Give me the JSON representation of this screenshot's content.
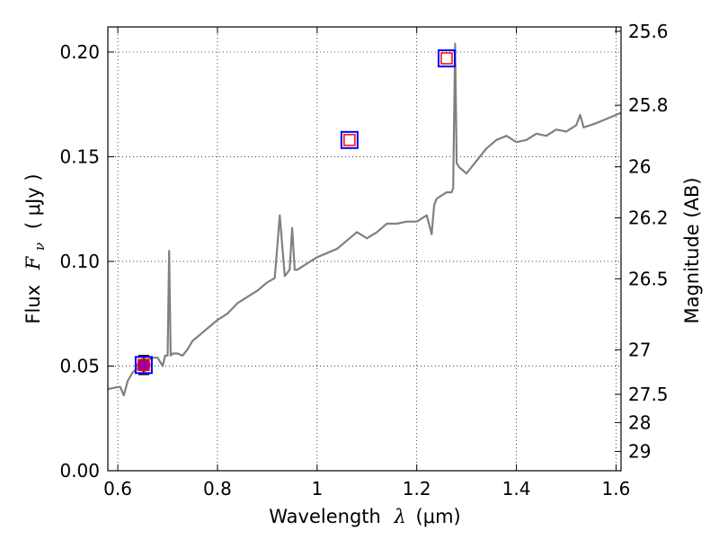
{
  "chart_data": {
    "type": "line",
    "xlabel_text": "Wavelength",
    "xlabel_symbol": "λ",
    "xlabel_unit": "(μm)",
    "ylabel_text": "Flux",
    "ylabel_symbol": "F",
    "ylabel_subscript": "ν",
    "ylabel_unit": "( μJy )",
    "y2label": "Magnitude (AB)",
    "xlim": [
      0.58,
      1.61
    ],
    "ylim": [
      0.0,
      0.212
    ],
    "x_ticks": [
      {
        "value": 0.6,
        "label": "0.6"
      },
      {
        "value": 0.8,
        "label": "0.8"
      },
      {
        "value": 1.0,
        "label": "1"
      },
      {
        "value": 1.2,
        "label": "1.2"
      },
      {
        "value": 1.4,
        "label": "1.4"
      },
      {
        "value": 1.6,
        "label": "1.6"
      }
    ],
    "y_ticks": [
      {
        "value": 0.0,
        "label": "0.00"
      },
      {
        "value": 0.05,
        "label": "0.05"
      },
      {
        "value": 0.1,
        "label": "0.10"
      },
      {
        "value": 0.15,
        "label": "0.15"
      },
      {
        "value": 0.2,
        "label": "0.20"
      }
    ],
    "y2_ticks": [
      {
        "label": "25.6",
        "flux": 0.2099
      },
      {
        "label": "25.8",
        "flux": 0.1746
      },
      {
        "label": "26",
        "flux": 0.1452
      },
      {
        "label": "26.2",
        "flux": 0.1208
      },
      {
        "label": "26.5",
        "flux": 0.0917
      },
      {
        "label": "27",
        "flux": 0.0578
      },
      {
        "label": "27.5",
        "flux": 0.0365
      },
      {
        "label": "28",
        "flux": 0.023
      },
      {
        "label": "29",
        "flux": 0.0092
      }
    ],
    "grid": true,
    "series": [
      {
        "role": "model-spectrum",
        "color": "#808080",
        "x": [
          0.58,
          0.6,
          0.605,
          0.612,
          0.62,
          0.63,
          0.64,
          0.65,
          0.66,
          0.67,
          0.68,
          0.69,
          0.695,
          0.7,
          0.703,
          0.706,
          0.71,
          0.72,
          0.73,
          0.74,
          0.75,
          0.76,
          0.77,
          0.78,
          0.79,
          0.8,
          0.82,
          0.84,
          0.86,
          0.88,
          0.9,
          0.915,
          0.925,
          0.935,
          0.945,
          0.95,
          0.955,
          0.96,
          0.98,
          1.0,
          1.02,
          1.04,
          1.06,
          1.08,
          1.1,
          1.12,
          1.14,
          1.16,
          1.18,
          1.2,
          1.22,
          1.23,
          1.235,
          1.24,
          1.26,
          1.27,
          1.273,
          1.277,
          1.28,
          1.285,
          1.3,
          1.32,
          1.34,
          1.36,
          1.38,
          1.4,
          1.42,
          1.44,
          1.46,
          1.48,
          1.5,
          1.52,
          1.528,
          1.535,
          1.56,
          1.58,
          1.6,
          1.61
        ],
        "y": [
          0.039,
          0.04,
          0.04,
          0.036,
          0.043,
          0.047,
          0.049,
          0.052,
          0.053,
          0.054,
          0.054,
          0.05,
          0.055,
          0.055,
          0.105,
          0.055,
          0.056,
          0.056,
          0.055,
          0.058,
          0.062,
          0.064,
          0.066,
          0.068,
          0.07,
          0.072,
          0.075,
          0.08,
          0.083,
          0.086,
          0.09,
          0.092,
          0.122,
          0.093,
          0.096,
          0.116,
          0.096,
          0.096,
          0.099,
          0.102,
          0.104,
          0.106,
          0.11,
          0.114,
          0.111,
          0.114,
          0.118,
          0.118,
          0.119,
          0.119,
          0.122,
          0.113,
          0.127,
          0.13,
          0.133,
          0.133,
          0.135,
          0.204,
          0.147,
          0.145,
          0.142,
          0.148,
          0.154,
          0.158,
          0.16,
          0.157,
          0.158,
          0.161,
          0.16,
          0.163,
          0.162,
          0.165,
          0.17,
          0.164,
          0.166,
          0.168,
          0.17,
          0.171
        ]
      }
    ],
    "markers": [
      {
        "role": "observed-photometry",
        "x": 0.652,
        "y": 0.0505,
        "yerr": 0.0045,
        "marker": "filled-circle",
        "color": "#990099"
      },
      {
        "role": "model-photometry-outer",
        "x": 0.652,
        "y": 0.0505,
        "marker": "open-square",
        "color": "#0000ff"
      },
      {
        "role": "model-photometry-inner",
        "x": 0.652,
        "y": 0.0505,
        "marker": "open-square",
        "color": "#ff0000"
      },
      {
        "role": "model-photometry-outer",
        "x": 1.065,
        "y": 0.158,
        "marker": "open-square",
        "color": "#0000ff"
      },
      {
        "role": "model-photometry-inner",
        "x": 1.065,
        "y": 0.158,
        "marker": "open-square",
        "color": "#ff0000"
      },
      {
        "role": "model-photometry-outer",
        "x": 1.26,
        "y": 0.197,
        "marker": "open-square",
        "color": "#0000ff"
      },
      {
        "role": "model-photometry-inner",
        "x": 1.26,
        "y": 0.197,
        "marker": "open-square",
        "color": "#ff0000"
      }
    ]
  }
}
